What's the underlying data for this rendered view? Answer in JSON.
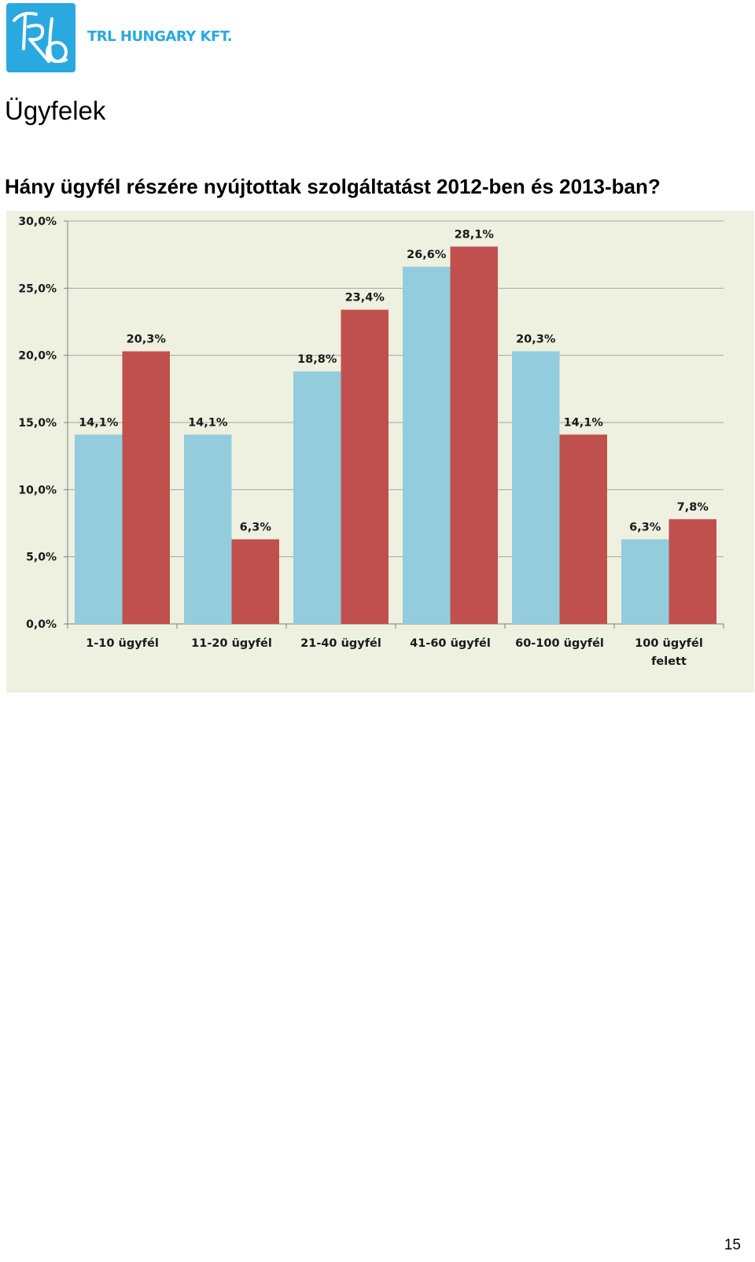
{
  "header": {
    "company_name": "TRL HUNGARY KFT.",
    "logo_icon": "trl-monogram-logo",
    "logo_text": "TRL",
    "brand_color": "#29a9e0"
  },
  "section_title": "Ügyfelek",
  "question": "Hány ügyfél részére nyújtottak szolgáltatást 2012-ben és 2013-ban?",
  "page_number": "15",
  "chart_data": {
    "type": "bar",
    "title": "",
    "xlabel": "",
    "ylabel": "",
    "ylim": [
      0,
      30
    ],
    "yticks": [
      0,
      5,
      10,
      15,
      20,
      25,
      30
    ],
    "ytick_labels": [
      "0,0%",
      "5,0%",
      "10,0%",
      "15,0%",
      "20,0%",
      "25,0%",
      "30,0%"
    ],
    "grid": true,
    "legend": "none",
    "categories": [
      [
        "1-10 ügyfél"
      ],
      [
        "11-20 ügyfél"
      ],
      [
        "21-40 ügyfél"
      ],
      [
        "41-60 ügyfél"
      ],
      [
        "60-100 ügyfél"
      ],
      [
        "100 ügyfél",
        "felett"
      ]
    ],
    "series": [
      {
        "color": "#93cddd",
        "values": [
          14.1,
          14.1,
          18.8,
          26.6,
          20.3,
          6.3
        ],
        "labels": [
          "14,1%",
          "14,1%",
          "18,8%",
          "26,6%",
          "20,3%",
          "6,3%"
        ]
      },
      {
        "color": "#c0504d",
        "values": [
          20.3,
          6.3,
          23.4,
          28.1,
          14.1,
          7.8
        ],
        "labels": [
          "20,3%",
          "6,3%",
          "23,4%",
          "28,1%",
          "14,1%",
          "7,8%"
        ]
      }
    ],
    "background_color": "#eef0e0",
    "grid_color": "#a6a6a6"
  }
}
